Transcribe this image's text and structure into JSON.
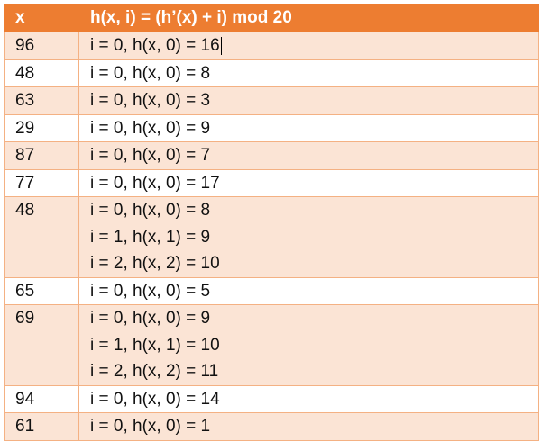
{
  "header": {
    "col_x": "x",
    "col_h": "h(x, i) = (h’(x) + i) mod 20"
  },
  "colors": {
    "header": "#ED7D31",
    "band": "#FBE4D5",
    "border": "#F4B183"
  },
  "rows": [
    {
      "x": "96",
      "probes": [
        "i = 0, h(x, 0) = 16"
      ]
    },
    {
      "x": "48",
      "probes": [
        "i = 0, h(x, 0) = 8"
      ]
    },
    {
      "x": "63",
      "probes": [
        "i = 0, h(x, 0) = 3"
      ]
    },
    {
      "x": "29",
      "probes": [
        "i = 0, h(x, 0) = 9"
      ]
    },
    {
      "x": "87",
      "probes": [
        "i = 0, h(x, 0) = 7"
      ]
    },
    {
      "x": "77",
      "probes": [
        "i = 0, h(x, 0) = 17"
      ]
    },
    {
      "x": "48",
      "probes": [
        "i = 0, h(x, 0) = 8",
        "i = 1, h(x, 1) = 9",
        "i = 2, h(x, 2) = 10"
      ]
    },
    {
      "x": "65",
      "probes": [
        "i = 0, h(x, 0) = 5"
      ]
    },
    {
      "x": "69",
      "probes": [
        "i = 0, h(x, 0) = 9",
        "i = 1, h(x, 1) = 10",
        "i = 2, h(x, 2) = 11"
      ]
    },
    {
      "x": "94",
      "probes": [
        "i = 0, h(x, 0) = 14"
      ]
    },
    {
      "x": "61",
      "probes": [
        "i = 0, h(x, 0) = 1"
      ]
    }
  ]
}
